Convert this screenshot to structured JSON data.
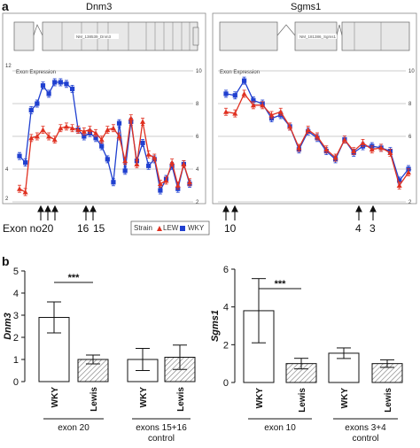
{
  "panel_a": {
    "label": "a",
    "exon_label": "Exon no.",
    "legend": {
      "title": "Strain",
      "series": [
        "LEW",
        "WKY"
      ]
    },
    "colors": {
      "LEW": "#e03020",
      "WKY": "#2040d0"
    },
    "genes": [
      {
        "name": "Dnm3",
        "transcript": "NM_138539_Dnm3",
        "exon_expression_label": "Exon Expression",
        "left_ticks": [
          "12",
          "4",
          "2"
        ],
        "right_ticks": [
          "10",
          "8",
          "6",
          "4",
          "2"
        ],
        "arrow_labels": [
          "20",
          "16",
          "15"
        ]
      },
      {
        "name": "Sgms1",
        "transcript": "NM_181386_Sgms1",
        "exon_expression_label": "Exon Expression",
        "right_ticks": [
          "10",
          "8",
          "6",
          "4",
          "2"
        ],
        "arrow_labels": [
          "10",
          "4",
          "3"
        ]
      }
    ]
  },
  "chart_data": [
    {
      "type": "line",
      "title": "Dnm3",
      "ylabel": "Exon Expression",
      "ylim": [
        2,
        10
      ],
      "grid": true,
      "x": [
        1,
        2,
        3,
        4,
        5,
        6,
        7,
        8,
        9,
        10,
        11,
        12,
        13,
        14,
        15,
        16,
        17,
        18,
        19,
        20,
        21,
        22,
        23,
        24,
        25,
        26,
        27,
        28,
        29,
        30
      ],
      "series": [
        {
          "name": "LEW",
          "values": [
            2.8,
            2.6,
            5.9,
            6.0,
            6.4,
            6.0,
            5.8,
            6.5,
            6.6,
            6.5,
            6.4,
            6.3,
            6.4,
            6.2,
            5.8,
            6.4,
            6.5,
            6.0,
            4.5,
            7.1,
            4.3,
            6.9,
            4.9,
            4.7,
            3.1,
            3.3,
            4.4,
            3.0,
            4.3,
            3.2
          ]
        },
        {
          "name": "WKY",
          "values": [
            4.8,
            4.4,
            7.6,
            8.0,
            9.1,
            8.6,
            9.3,
            9.3,
            9.2,
            8.9,
            6.4,
            6.0,
            6.2,
            5.9,
            5.4,
            4.6,
            3.2,
            6.8,
            3.9,
            6.9,
            4.5,
            5.6,
            4.2,
            4.6,
            2.7,
            3.4,
            4.2,
            2.8,
            4.3,
            3.1
          ]
        }
      ]
    },
    {
      "type": "line",
      "title": "Sgms1",
      "ylabel": "Exon Expression",
      "ylim": [
        2,
        10
      ],
      "grid": true,
      "x": [
        1,
        2,
        3,
        4,
        5,
        6,
        7,
        8,
        9,
        10,
        11,
        12,
        13,
        14,
        15,
        16,
        17,
        18,
        19,
        20,
        21
      ],
      "series": [
        {
          "name": "LEW",
          "values": [
            7.5,
            7.4,
            8.6,
            7.9,
            7.9,
            7.3,
            7.5,
            6.6,
            5.3,
            6.4,
            6.0,
            5.2,
            4.7,
            5.8,
            5.1,
            5.6,
            5.2,
            5.3,
            5.0,
            3.0,
            3.8
          ]
        },
        {
          "name": "WKY",
          "values": [
            8.6,
            8.5,
            9.4,
            8.2,
            8.0,
            7.1,
            7.3,
            6.6,
            5.2,
            6.3,
            5.9,
            5.1,
            4.6,
            5.8,
            5.0,
            5.4,
            5.4,
            5.3,
            5.1,
            3.3,
            4.0
          ]
        }
      ]
    },
    {
      "type": "bar",
      "ylabel": "Dnm3",
      "ylim": [
        0,
        5
      ],
      "yticks": [
        "0",
        "1",
        "2",
        "3",
        "4",
        "5"
      ],
      "categories": [
        "WKY",
        "Lewis",
        "WKY",
        "Lewis"
      ],
      "values": [
        2.9,
        1.0,
        1.0,
        1.1
      ],
      "errors": [
        0.7,
        0.2,
        0.5,
        0.55
      ],
      "hatched": [
        false,
        true,
        false,
        true
      ],
      "groups": [
        {
          "label": "exon 20"
        },
        {
          "label": "exons 15+16",
          "sub": "control"
        }
      ],
      "significance": "***"
    },
    {
      "type": "bar",
      "ylabel": "Sgms1",
      "ylim": [
        0,
        6
      ],
      "yticks": [
        "0",
        "2",
        "4",
        "6"
      ],
      "categories": [
        "WKY",
        "Lewis",
        "WKY",
        "Lewis"
      ],
      "values": [
        3.8,
        1.0,
        1.55,
        1.0
      ],
      "errors": [
        1.7,
        0.28,
        0.28,
        0.2
      ],
      "hatched": [
        false,
        true,
        false,
        true
      ],
      "groups": [
        {
          "label": "exon 10"
        },
        {
          "label": "exons 3+4",
          "sub": "control"
        }
      ],
      "significance": "***"
    }
  ],
  "panel_b": {
    "label": "b"
  }
}
